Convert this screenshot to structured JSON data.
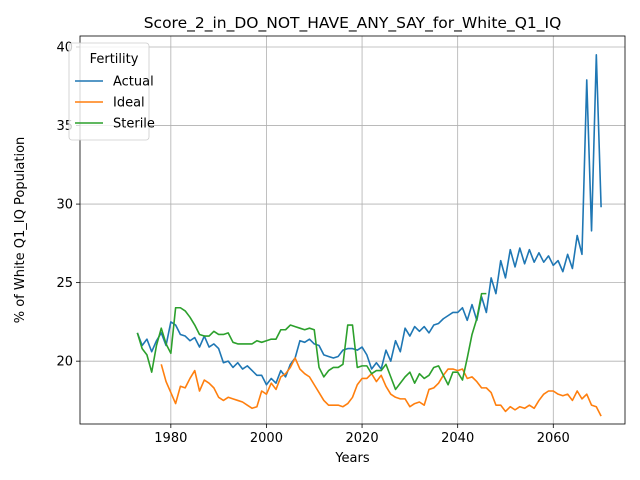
{
  "chart_data": {
    "type": "line",
    "title": "Score_2_in_DO_NOT_HAVE_ANY_SAY_for_White_Q1_IQ",
    "xlabel": "Years",
    "ylabel": "% of White Q1_IQ Population",
    "xlim": [
      1961,
      2075
    ],
    "ylim": [
      16.0,
      40.7
    ],
    "xticks": [
      1980,
      2000,
      2020,
      2040,
      2060
    ],
    "yticks": [
      20,
      25,
      30,
      35,
      40
    ],
    "grid": true,
    "legend": {
      "title": "Fertility",
      "position": "upper-left"
    },
    "series": [
      {
        "name": "Actual",
        "color": "#1f77b4",
        "x": [
          1973,
          1974,
          1975,
          1976,
          1977,
          1978,
          1979,
          1980,
          1981,
          1982,
          1983,
          1984,
          1985,
          1986,
          1987,
          1988,
          1989,
          1990,
          1991,
          1992,
          1993,
          1994,
          1995,
          1996,
          1997,
          1998,
          1999,
          2000,
          2001,
          2002,
          2003,
          2004,
          2005,
          2006,
          2007,
          2008,
          2009,
          2010,
          2011,
          2012,
          2013,
          2014,
          2015,
          2016,
          2017,
          2018,
          2019,
          2020,
          2021,
          2022,
          2023,
          2024,
          2025,
          2026,
          2027,
          2028,
          2029,
          2030,
          2031,
          2032,
          2033,
          2034,
          2035,
          2036,
          2037,
          2038,
          2039,
          2040,
          2041,
          2042,
          2043,
          2044,
          2045,
          2046,
          2047,
          2048,
          2049,
          2050,
          2051,
          2052,
          2053,
          2054,
          2055,
          2056,
          2057,
          2058,
          2059,
          2060,
          2061,
          2062,
          2063,
          2064,
          2065,
          2066,
          2067,
          2068,
          2069,
          2070
        ],
        "y": [
          21.8,
          21.0,
          21.4,
          20.6,
          21.3,
          21.8,
          21.0,
          22.5,
          22.3,
          21.7,
          21.6,
          21.3,
          21.5,
          20.9,
          21.6,
          20.9,
          21.1,
          20.8,
          19.9,
          20.0,
          19.6,
          19.9,
          19.5,
          19.7,
          19.4,
          19.1,
          19.1,
          18.5,
          18.9,
          18.6,
          19.4,
          19.0,
          19.8,
          20.2,
          21.3,
          21.2,
          21.4,
          21.1,
          21.0,
          20.4,
          20.3,
          20.2,
          20.3,
          20.7,
          20.8,
          20.8,
          20.7,
          20.9,
          20.4,
          19.5,
          19.9,
          19.5,
          20.7,
          20.0,
          21.3,
          20.6,
          22.1,
          21.6,
          22.2,
          21.9,
          22.2,
          21.8,
          22.3,
          22.4,
          22.7,
          22.9,
          23.1,
          23.1,
          23.4,
          22.6,
          23.6,
          22.6,
          24.1,
          23.1,
          25.3,
          24.3,
          26.4,
          25.3,
          27.1,
          26.0,
          27.2,
          26.2,
          27.1,
          26.3,
          26.9,
          26.3,
          26.7,
          26.1,
          26.4,
          25.7,
          26.8,
          25.9,
          28.0,
          26.8,
          37.9,
          28.3,
          39.5,
          29.8
        ]
      },
      {
        "name": "Ideal",
        "color": "#ff7f0e",
        "x": [
          1978,
          1979,
          1980,
          1981,
          1982,
          1983,
          1984,
          1985,
          1986,
          1987,
          1988,
          1989,
          1990,
          1991,
          1992,
          1993,
          1994,
          1995,
          1996,
          1997,
          1998,
          1999,
          2000,
          2001,
          2002,
          2003,
          2004,
          2005,
          2006,
          2007,
          2008,
          2009,
          2010,
          2011,
          2012,
          2013,
          2014,
          2015,
          2016,
          2017,
          2018,
          2019,
          2020,
          2021,
          2022,
          2023,
          2024,
          2025,
          2026,
          2027,
          2028,
          2029,
          2030,
          2031,
          2032,
          2033,
          2034,
          2035,
          2036,
          2037,
          2038,
          2039,
          2040,
          2041,
          2042,
          2043,
          2044,
          2045,
          2046,
          2047,
          2048,
          2049,
          2050,
          2051,
          2052,
          2053,
          2054,
          2055,
          2056,
          2057,
          2058,
          2059,
          2060,
          2061,
          2062,
          2063,
          2064,
          2065,
          2066,
          2067,
          2068,
          2069,
          2070
        ],
        "y": [
          19.8,
          18.7,
          18.0,
          17.3,
          18.4,
          18.3,
          18.9,
          19.4,
          18.1,
          18.8,
          18.6,
          18.3,
          17.7,
          17.5,
          17.7,
          17.6,
          17.5,
          17.4,
          17.2,
          17.0,
          17.1,
          18.1,
          17.9,
          18.6,
          18.2,
          19.0,
          19.2,
          19.6,
          20.2,
          19.5,
          19.2,
          19.0,
          18.5,
          18.0,
          17.5,
          17.2,
          17.2,
          17.2,
          17.1,
          17.3,
          17.7,
          18.5,
          18.9,
          18.9,
          19.2,
          18.7,
          19.1,
          18.4,
          17.9,
          17.7,
          17.6,
          17.6,
          17.1,
          17.3,
          17.4,
          17.2,
          18.2,
          18.3,
          18.6,
          19.1,
          19.5,
          19.5,
          19.4,
          19.5,
          18.9,
          19.0,
          18.7,
          18.3,
          18.3,
          18.0,
          17.2,
          17.2,
          16.8,
          17.1,
          16.9,
          17.1,
          17.0,
          17.2,
          17.0,
          17.5,
          17.9,
          18.1,
          18.1,
          17.9,
          17.8,
          17.9,
          17.5,
          18.1,
          17.6,
          17.9,
          17.2,
          17.1,
          16.5
        ]
      },
      {
        "name": "Sterile",
        "color": "#2ca02c",
        "x": [
          1973,
          1974,
          1975,
          1976,
          1977,
          1978,
          1979,
          1980,
          1981,
          1982,
          1983,
          1984,
          1985,
          1986,
          1987,
          1988,
          1989,
          1990,
          1991,
          1992,
          1993,
          1994,
          1995,
          1996,
          1997,
          1998,
          1999,
          2000,
          2001,
          2002,
          2003,
          2004,
          2005,
          2006,
          2007,
          2008,
          2009,
          2010,
          2011,
          2012,
          2013,
          2014,
          2015,
          2016,
          2017,
          2018,
          2019,
          2020,
          2021,
          2022,
          2023,
          2024,
          2025,
          2026,
          2027,
          2028,
          2029,
          2030,
          2031,
          2032,
          2033,
          2034,
          2035,
          2036,
          2037,
          2038,
          2039,
          2040,
          2041,
          2042,
          2043,
          2044,
          2045,
          2046
        ],
        "y": [
          21.8,
          20.8,
          20.4,
          19.3,
          21.0,
          22.1,
          21.1,
          20.5,
          23.4,
          23.4,
          23.2,
          22.8,
          22.3,
          21.7,
          21.6,
          21.6,
          21.9,
          21.7,
          21.7,
          21.8,
          21.2,
          21.1,
          21.1,
          21.1,
          21.1,
          21.3,
          21.2,
          21.3,
          21.4,
          21.4,
          22.0,
          22.0,
          22.3,
          22.2,
          22.1,
          22.0,
          22.1,
          22.0,
          19.6,
          19.0,
          19.4,
          19.6,
          19.6,
          19.8,
          22.3,
          22.3,
          19.6,
          19.7,
          19.7,
          19.2,
          19.4,
          19.4,
          19.8,
          19.0,
          18.2,
          18.6,
          19.0,
          19.3,
          18.6,
          19.2,
          18.9,
          19.1,
          19.6,
          19.7,
          19.1,
          18.5,
          19.3,
          19.3,
          18.8,
          20.2,
          21.7,
          22.7,
          24.3,
          24.3
        ]
      }
    ]
  }
}
